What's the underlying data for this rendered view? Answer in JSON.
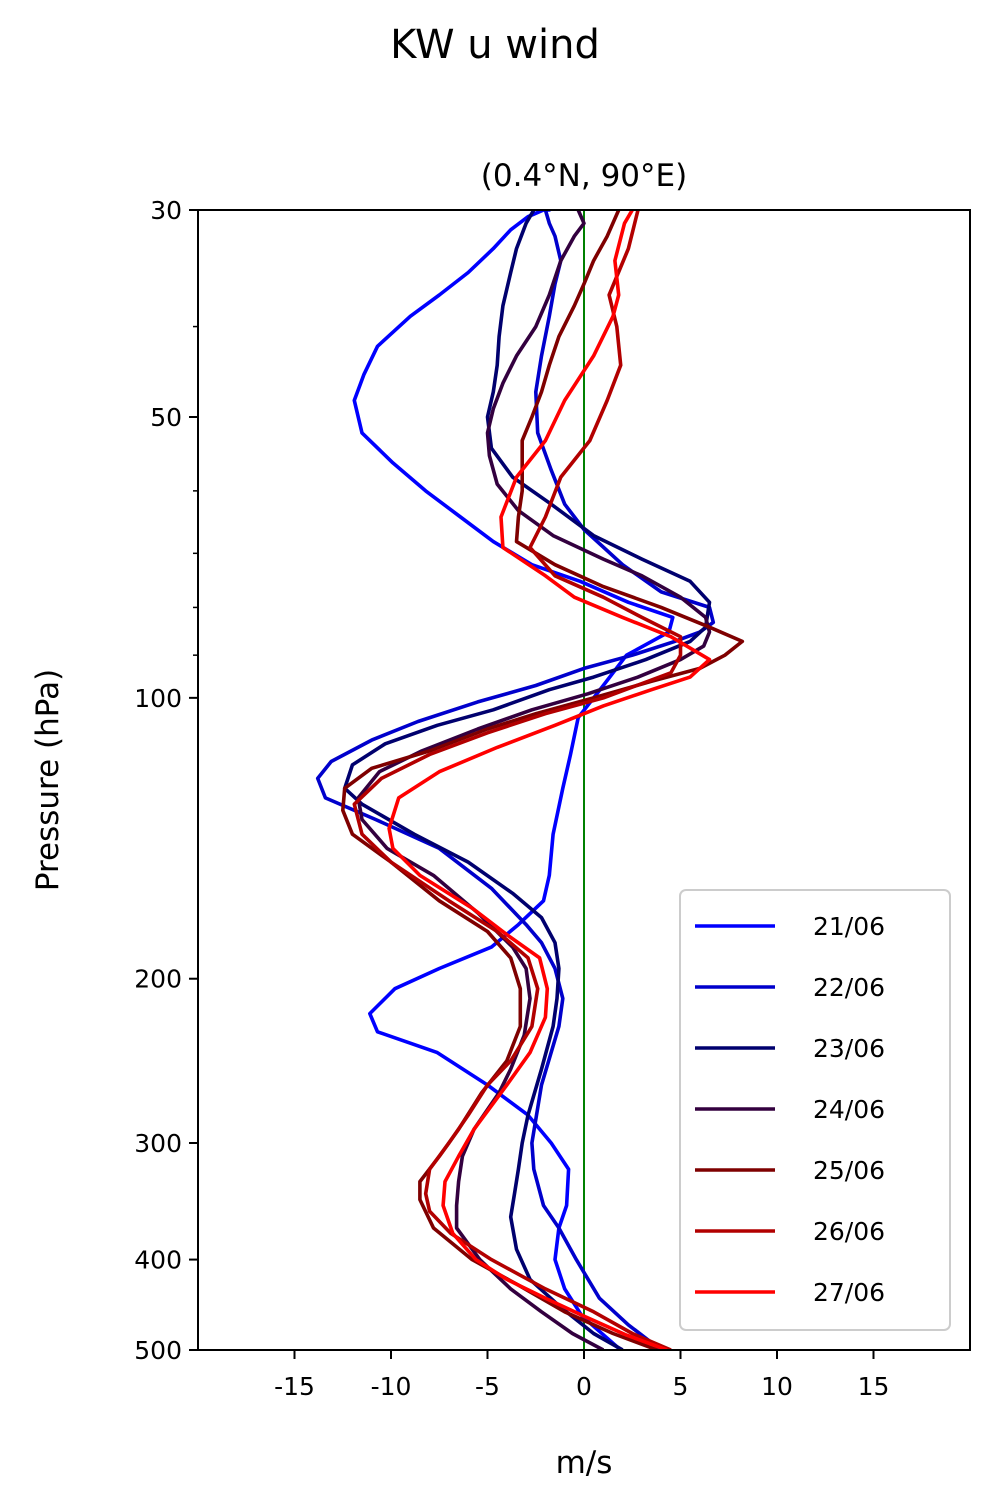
{
  "title": "KW u wind",
  "chart_data": {
    "type": "line",
    "title": "(0.4°N, 90°E)",
    "xlabel": "m/s",
    "ylabel": "Pressure (hPa)",
    "xlim": [
      -20,
      20
    ],
    "ylim": [
      500,
      30
    ],
    "y_scale": "log",
    "x_ticks": [
      -15,
      -10,
      -5,
      0,
      5,
      10,
      15
    ],
    "x_tick_labels": [
      "-15",
      "-10",
      "-5",
      "0",
      "5",
      "10",
      "15"
    ],
    "y_ticks": [
      30,
      50,
      100,
      200,
      300,
      400,
      500
    ],
    "y_tick_labels": [
      "30",
      "50",
      "100",
      "200",
      "300",
      "400",
      "500"
    ],
    "y_minor_ticks": [
      40,
      60,
      70,
      80,
      90
    ],
    "reference_line": {
      "x": 0,
      "color": "#008000"
    },
    "grid": false,
    "legend_position": "lower-right",
    "series": [
      {
        "name": "21/06",
        "color": "#0000ff",
        "x": [
          1.9,
          -0.1,
          -1.0,
          -1.5,
          -1.3,
          -0.9,
          -0.8,
          -1.7,
          -2.9,
          -5.0,
          -7.6,
          -10.7,
          -11.1,
          -9.8,
          -7.5,
          -4.8,
          -3.4,
          -2.1,
          -1.8,
          -1.6,
          -1.1,
          -0.7,
          -0.3,
          1.0,
          2.2,
          4.4,
          4.6,
          2.3,
          -0.2,
          -2.7,
          -4.7,
          -6.4,
          -8.2,
          -9.9,
          -11.5,
          -11.9,
          -11.4,
          -10.7,
          -9.0,
          -7.5,
          -6.0,
          -4.7,
          -3.8,
          -2.9,
          -2.1,
          -1.8,
          -2.0,
          -2.3,
          -2.2
        ],
        "y": [
          500,
          460,
          430,
          400,
          370,
          350,
          320,
          300,
          280,
          260,
          240,
          228,
          218,
          205,
          195,
          185,
          175,
          165,
          155,
          140,
          125,
          115,
          105,
          97,
          90,
          85,
          82,
          79,
          75,
          72,
          68,
          64,
          60,
          56,
          52,
          48,
          45,
          42,
          39,
          37,
          35,
          33,
          31.5,
          30.5,
          30,
          30,
          30,
          30,
          30
        ]
      },
      {
        "name": "22/06",
        "color": "#0000cc",
        "x": [
          4.0,
          2.3,
          0.8,
          -0.4,
          -1.3,
          -2.1,
          -2.6,
          -2.7,
          -2.2,
          -1.3,
          -1.1,
          -1.5,
          -2.2,
          -3.0,
          -4.8,
          -7.5,
          -10.8,
          -13.4,
          -13.8,
          -13.1,
          -11.0,
          -8.6,
          -5.5,
          -2.5,
          0.0,
          2.5,
          4.7,
          6.0,
          6.7,
          6.5,
          4.0,
          2.0,
          0.0,
          -1.0,
          -1.7,
          -2.4,
          -2.5,
          -2.2,
          -1.8,
          -1.5,
          -1.2,
          -1.5,
          -1.8,
          -2.0
        ],
        "y": [
          500,
          470,
          440,
          400,
          370,
          350,
          320,
          300,
          260,
          225,
          210,
          195,
          183,
          175,
          160,
          145,
          135,
          128,
          122,
          117,
          111,
          106,
          101,
          97,
          93,
          90,
          87,
          85,
          83,
          80,
          77,
          72,
          66,
          62,
          57,
          52,
          47,
          43,
          39,
          36,
          34,
          32,
          31,
          30
        ]
      },
      {
        "name": "23/06",
        "color": "#00006e",
        "x": [
          2.0,
          0.5,
          -1.2,
          -2.8,
          -3.5,
          -3.8,
          -3.6,
          -3.4,
          -3.2,
          -2.9,
          -2.2,
          -1.6,
          -1.4,
          -1.3,
          -1.5,
          -2.2,
          -3.7,
          -6.0,
          -8.8,
          -11.5,
          -12.4,
          -12.0,
          -10.3,
          -7.6,
          -4.7,
          -1.8,
          0.5,
          3.2,
          5.5,
          6.3,
          6.5,
          5.5,
          3.0,
          0.5,
          -1.7,
          -3.7,
          -4.8,
          -5.0,
          -4.7,
          -4.5,
          -4.4,
          -4.2,
          -3.8,
          -3.5,
          -3.0,
          -2.6
        ],
        "y": [
          500,
          480,
          450,
          420,
          390,
          360,
          340,
          320,
          300,
          280,
          250,
          225,
          210,
          195,
          183,
          172,
          162,
          150,
          140,
          130,
          125,
          118,
          112,
          107,
          103,
          98,
          95,
          91,
          87,
          84,
          79,
          75,
          71,
          67,
          62,
          58,
          54,
          50,
          47,
          44,
          41,
          38,
          35,
          33,
          31,
          30
        ]
      },
      {
        "name": "24/06",
        "color": "#33003f",
        "x": [
          1.0,
          -0.6,
          -2.2,
          -3.8,
          -5.4,
          -6.6,
          -6.6,
          -6.5,
          -6.3,
          -5.7,
          -4.4,
          -3.8,
          -3.1,
          -2.8,
          -3.0,
          -3.7,
          -5.5,
          -7.8,
          -10.2,
          -11.5,
          -11.7,
          -10.6,
          -8.4,
          -5.5,
          -2.7,
          0.2,
          2.8,
          5.0,
          6.2,
          6.5,
          6.3,
          5.0,
          3.0,
          1.0,
          -1.6,
          -3.4,
          -4.5,
          -4.9,
          -5.0,
          -4.7,
          -4.2,
          -3.5,
          -2.5,
          -1.8,
          -1.2,
          -0.5,
          0.0,
          -0.3
        ],
        "y": [
          500,
          480,
          455,
          430,
          400,
          370,
          350,
          330,
          310,
          290,
          265,
          250,
          230,
          210,
          195,
          185,
          170,
          155,
          145,
          135,
          128,
          120,
          114,
          108,
          103,
          99,
          95,
          91,
          88,
          85,
          82,
          78,
          74,
          71,
          67,
          63,
          59,
          55,
          52,
          49,
          46,
          43,
          40,
          37,
          34,
          32,
          31,
          30
        ]
      },
      {
        "name": "25/06",
        "color": "#7f0000",
        "x": [
          3.8,
          1.5,
          -1.0,
          -3.5,
          -5.8,
          -7.8,
          -8.5,
          -8.5,
          -7.5,
          -6.5,
          -5.3,
          -4.0,
          -3.3,
          -3.3,
          -3.8,
          -5.0,
          -7.5,
          -10.0,
          -12.0,
          -12.5,
          -12.4,
          -11.0,
          -8.0,
          -5.0,
          -2.5,
          0.5,
          3.5,
          6.0,
          7.3,
          8.2,
          6.5,
          4.0,
          1.0,
          -1.5,
          -3.5,
          -3.4,
          -3.2,
          -3.2,
          -3.2,
          -2.7,
          -2.2,
          -1.8,
          -1.3,
          -0.5,
          0.0,
          0.5,
          1.2,
          1.8
        ],
        "y": [
          500,
          480,
          455,
          425,
          400,
          370,
          345,
          330,
          310,
          290,
          265,
          245,
          225,
          205,
          190,
          178,
          165,
          150,
          140,
          132,
          125,
          119,
          114,
          108,
          104,
          100,
          96,
          93,
          90,
          87,
          84,
          80,
          76,
          72,
          68,
          64,
          60,
          57,
          53,
          50,
          47,
          44,
          41,
          38,
          36,
          34,
          32,
          30
        ]
      },
      {
        "name": "26/06",
        "color": "#b20000",
        "x": [
          4.5,
          2.5,
          0.5,
          -2.0,
          -4.8,
          -6.9,
          -8.0,
          -8.2,
          -8.0,
          -7.0,
          -6.0,
          -5.0,
          -3.8,
          -2.7,
          -2.4,
          -2.9,
          -4.5,
          -7.0,
          -10.0,
          -11.5,
          -11.9,
          -10.5,
          -8.0,
          -5.0,
          -2.0,
          1.0,
          4.5,
          5.0,
          5.0,
          3.0,
          1.0,
          -1.5,
          -2.8,
          -2.0,
          -1.2,
          0.3,
          1.2,
          1.9,
          1.7,
          1.3,
          2.3,
          2.8
        ],
        "y": [
          500,
          480,
          455,
          430,
          400,
          375,
          355,
          340,
          320,
          300,
          280,
          260,
          245,
          225,
          205,
          190,
          178,
          165,
          150,
          140,
          130,
          122,
          115,
          109,
          104,
          100,
          94,
          90,
          86,
          82,
          78,
          74,
          69,
          64,
          58,
          53,
          48,
          44,
          40,
          37,
          33,
          30
        ]
      },
      {
        "name": "27/06",
        "color": "#ff0000",
        "x": [
          4.3,
          2.2,
          0.0,
          -2.0,
          -4.0,
          -5.6,
          -6.8,
          -7.3,
          -7.2,
          -6.5,
          -5.7,
          -4.0,
          -2.8,
          -2.0,
          -1.9,
          -2.3,
          -3.9,
          -5.8,
          -8.5,
          -9.9,
          -10.1,
          -9.6,
          -7.5,
          -4.5,
          -1.5,
          1.0,
          3.5,
          5.5,
          6.5,
          4.5,
          2.0,
          -0.5,
          -2.0,
          -4.2,
          -4.3,
          -3.5,
          -2.0,
          -1.0,
          0.5,
          1.5,
          1.8,
          1.6,
          2.1,
          2.5
        ],
        "y": [
          500,
          482,
          460,
          440,
          420,
          400,
          375,
          350,
          330,
          310,
          290,
          260,
          240,
          220,
          205,
          190,
          180,
          168,
          155,
          145,
          138,
          128,
          120,
          113,
          107,
          102,
          98,
          95,
          91,
          86,
          82,
          78,
          74,
          69,
          64,
          58,
          53,
          48,
          43,
          39,
          37,
          34,
          31,
          30
        ]
      }
    ]
  }
}
